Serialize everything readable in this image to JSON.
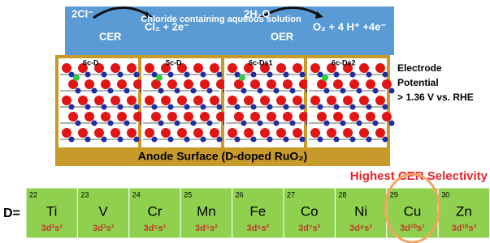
{
  "top": {
    "left_reactant": "2Cl⁻",
    "left_product": "Cl₂ + 2e⁻",
    "left_label": "CER",
    "solution": "Chloride containing aqueous solution",
    "right_reactant": "2H₂O",
    "right_product": "O₂ + 4 H⁺ +4e⁻",
    "right_label": "OER"
  },
  "panels": [
    "6c-D",
    "5c-D",
    "6c-Ds1",
    "6c-Ds2"
  ],
  "side": {
    "line1": "Electrode",
    "line2": "Potential",
    "line3": "> 1.36 V vs. RHE"
  },
  "surface": "Anode Surface (D-doped RuO₂)",
  "highlight": "Highest CER Selectivity",
  "prefix": "D=",
  "elements": [
    {
      "number": 22,
      "symbol": "Ti",
      "config": "3d²s²"
    },
    {
      "number": 23,
      "symbol": "V",
      "config": "3d³s²"
    },
    {
      "number": 24,
      "symbol": "Cr",
      "config": "3d⁵s¹"
    },
    {
      "number": 25,
      "symbol": "Mn",
      "config": "3d⁵s²"
    },
    {
      "number": 26,
      "symbol": "Fe",
      "config": "3d⁶s²"
    },
    {
      "number": 27,
      "symbol": "Co",
      "config": "3d⁷s²"
    },
    {
      "number": 28,
      "symbol": "Ni",
      "config": "3d⁸s²"
    },
    {
      "number": 29,
      "symbol": "Cu",
      "config": "3d¹⁰s¹"
    },
    {
      "number": 30,
      "symbol": "Zn",
      "config": "3d¹⁰s²"
    }
  ]
}
